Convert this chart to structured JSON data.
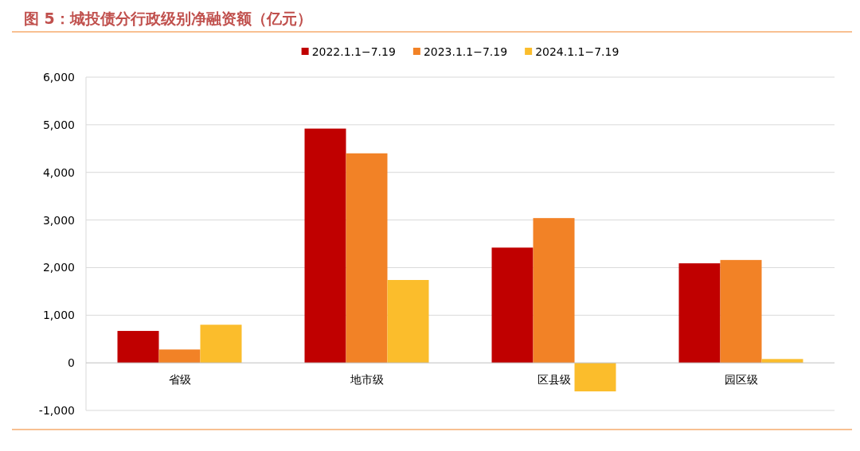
{
  "chart_data": {
    "type": "bar",
    "title": "图 5：城投债分行政级别净融资额（亿元）",
    "categories": [
      "省级",
      "地市级",
      "区县级",
      "园区级"
    ],
    "series": [
      {
        "name": "2022.1.1−7.19",
        "color": "#c00000",
        "values": [
          670,
          4920,
          2420,
          2090
        ]
      },
      {
        "name": "2023.1.1−7.19",
        "color": "#f28226",
        "values": [
          280,
          4400,
          3040,
          2160
        ]
      },
      {
        "name": "2024.1.1−7.19",
        "color": "#fbbd2c",
        "values": [
          800,
          1740,
          -600,
          80
        ]
      }
    ],
    "ylim": [
      -1000,
      6000
    ],
    "yticks": [
      {
        "value": -1000,
        "label": "-1,000"
      },
      0,
      {
        "value": 1000,
        "label": "1,000"
      },
      {
        "value": 2000,
        "label": "2,000"
      },
      {
        "value": 3000,
        "label": "3,000"
      },
      {
        "value": 4000,
        "label": "4,000"
      },
      {
        "value": 5000,
        "label": "5,000"
      },
      {
        "value": 6000,
        "label": "6,000"
      }
    ],
    "grid": "y",
    "legend": "top"
  }
}
